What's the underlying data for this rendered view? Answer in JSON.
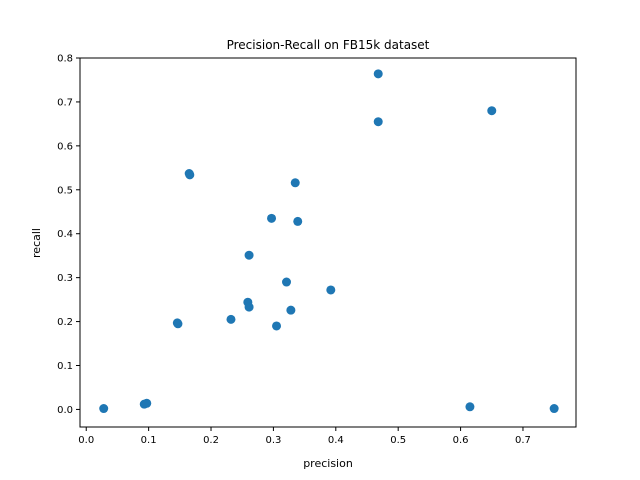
{
  "chart_data": {
    "type": "scatter",
    "title": "Precision-Recall on FB15k dataset",
    "xlabel": "precision",
    "ylabel": "recall",
    "xlim": [
      -0.01,
      0.785
    ],
    "ylim": [
      -0.04,
      0.8
    ],
    "xticks": [
      0.0,
      0.1,
      0.2,
      0.3,
      0.4,
      0.5,
      0.6,
      0.7
    ],
    "xtick_labels": [
      "0.0",
      "0.1",
      "0.2",
      "0.3",
      "0.4",
      "0.5",
      "0.6",
      "0.7"
    ],
    "yticks": [
      0.0,
      0.1,
      0.2,
      0.3,
      0.4,
      0.5,
      0.6,
      0.7,
      0.8
    ],
    "ytick_labels": [
      "0.0",
      "0.1",
      "0.2",
      "0.3",
      "0.4",
      "0.5",
      "0.6",
      "0.7",
      "0.8"
    ],
    "grid": false,
    "marker_color": "#1f77b4",
    "points": [
      {
        "x": 0.028,
        "y": 0.002
      },
      {
        "x": 0.093,
        "y": 0.012
      },
      {
        "x": 0.097,
        "y": 0.014
      },
      {
        "x": 0.146,
        "y": 0.197
      },
      {
        "x": 0.147,
        "y": 0.195
      },
      {
        "x": 0.165,
        "y": 0.537
      },
      {
        "x": 0.166,
        "y": 0.534
      },
      {
        "x": 0.232,
        "y": 0.205
      },
      {
        "x": 0.259,
        "y": 0.244
      },
      {
        "x": 0.261,
        "y": 0.233
      },
      {
        "x": 0.261,
        "y": 0.351
      },
      {
        "x": 0.297,
        "y": 0.435
      },
      {
        "x": 0.305,
        "y": 0.19
      },
      {
        "x": 0.321,
        "y": 0.29
      },
      {
        "x": 0.328,
        "y": 0.226
      },
      {
        "x": 0.335,
        "y": 0.516
      },
      {
        "x": 0.339,
        "y": 0.428
      },
      {
        "x": 0.392,
        "y": 0.272
      },
      {
        "x": 0.468,
        "y": 0.764
      },
      {
        "x": 0.468,
        "y": 0.655
      },
      {
        "x": 0.615,
        "y": 0.006
      },
      {
        "x": 0.65,
        "y": 0.68
      },
      {
        "x": 0.75,
        "y": 0.002
      }
    ]
  }
}
